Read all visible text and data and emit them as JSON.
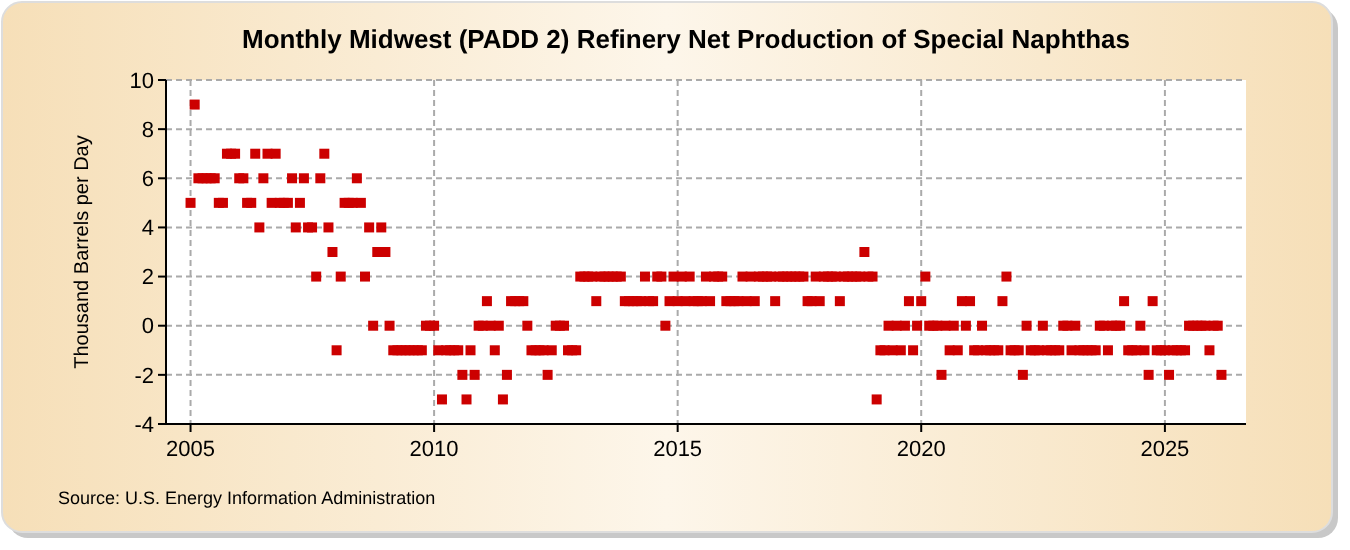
{
  "chart_data": {
    "type": "scatter",
    "title": "Monthly Midwest (PADD 2) Refinery Net Production of Special Naphthas",
    "ylabel": "Thousand Barrels per Day",
    "annotations": [
      "Source: U.S. Energy Information Administration"
    ],
    "marker": "square",
    "grid": true,
    "xlim": [
      "2004-07",
      "2026-09"
    ],
    "xticks": [
      {
        "value": "2005-01",
        "label": "2005"
      },
      {
        "value": "2010-01",
        "label": "2010"
      },
      {
        "value": "2015-01",
        "label": "2015"
      },
      {
        "value": "2020-01",
        "label": "2020"
      },
      {
        "value": "2025-01",
        "label": "2025"
      }
    ],
    "ylim": [
      -4,
      10
    ],
    "yticks": [
      -4,
      -2,
      0,
      2,
      4,
      6,
      8,
      10
    ],
    "x": [
      "2005-01",
      "2005-02",
      "2005-03",
      "2005-04",
      "2005-05",
      "2005-06",
      "2005-07",
      "2005-08",
      "2005-09",
      "2005-10",
      "2005-11",
      "2005-12",
      "2006-01",
      "2006-02",
      "2006-03",
      "2006-04",
      "2006-05",
      "2006-06",
      "2006-07",
      "2006-08",
      "2006-09",
      "2006-10",
      "2006-11",
      "2006-12",
      "2007-01",
      "2007-02",
      "2007-03",
      "2007-04",
      "2007-05",
      "2007-06",
      "2007-07",
      "2007-08",
      "2007-09",
      "2007-10",
      "2007-11",
      "2007-12",
      "2008-01",
      "2008-02",
      "2008-03",
      "2008-04",
      "2008-05",
      "2008-06",
      "2008-07",
      "2008-08",
      "2008-09",
      "2008-10",
      "2008-11",
      "2008-12",
      "2009-01",
      "2009-02",
      "2009-03",
      "2009-04",
      "2009-05",
      "2009-06",
      "2009-07",
      "2009-08",
      "2009-09",
      "2009-10",
      "2009-11",
      "2009-12",
      "2010-01",
      "2010-02",
      "2010-03",
      "2010-04",
      "2010-05",
      "2010-06",
      "2010-07",
      "2010-08",
      "2010-09",
      "2010-10",
      "2010-11",
      "2010-12",
      "2011-01",
      "2011-02",
      "2011-03",
      "2011-04",
      "2011-05",
      "2011-06",
      "2011-07",
      "2011-08",
      "2011-09",
      "2011-10",
      "2011-11",
      "2011-12",
      "2012-01",
      "2012-02",
      "2012-03",
      "2012-04",
      "2012-05",
      "2012-06",
      "2012-07",
      "2012-08",
      "2012-09",
      "2012-10",
      "2012-11",
      "2012-12",
      "2013-01",
      "2013-02",
      "2013-03",
      "2013-04",
      "2013-05",
      "2013-06",
      "2013-07",
      "2013-08",
      "2013-09",
      "2013-10",
      "2013-11",
      "2013-12",
      "2014-01",
      "2014-02",
      "2014-03",
      "2014-04",
      "2014-05",
      "2014-06",
      "2014-07",
      "2014-08",
      "2014-09",
      "2014-10",
      "2014-11",
      "2014-12",
      "2015-01",
      "2015-02",
      "2015-03",
      "2015-04",
      "2015-05",
      "2015-06",
      "2015-07",
      "2015-08",
      "2015-09",
      "2015-10",
      "2015-11",
      "2015-12",
      "2016-01",
      "2016-02",
      "2016-03",
      "2016-04",
      "2016-05",
      "2016-06",
      "2016-07",
      "2016-08",
      "2016-09",
      "2016-10",
      "2016-11",
      "2016-12",
      "2017-01",
      "2017-02",
      "2017-03",
      "2017-04",
      "2017-05",
      "2017-06",
      "2017-07",
      "2017-08",
      "2017-09",
      "2017-10",
      "2017-11",
      "2017-12",
      "2018-01",
      "2018-02",
      "2018-03",
      "2018-04",
      "2018-05",
      "2018-06",
      "2018-07",
      "2018-08",
      "2018-09",
      "2018-10",
      "2018-11",
      "2018-12",
      "2019-01",
      "2019-02",
      "2019-03",
      "2019-04",
      "2019-05",
      "2019-06",
      "2019-07",
      "2019-08",
      "2019-09",
      "2019-10",
      "2019-11",
      "2019-12",
      "2020-01",
      "2020-02",
      "2020-03",
      "2020-04",
      "2020-05",
      "2020-06",
      "2020-07",
      "2020-08",
      "2020-09",
      "2020-10",
      "2020-11",
      "2020-12",
      "2021-01",
      "2021-02",
      "2021-03",
      "2021-04",
      "2021-05",
      "2021-06",
      "2021-07",
      "2021-08",
      "2021-09",
      "2021-10",
      "2021-11",
      "2021-12",
      "2022-01",
      "2022-02",
      "2022-03",
      "2022-04",
      "2022-05",
      "2022-06",
      "2022-07",
      "2022-08",
      "2022-09",
      "2022-10",
      "2022-11",
      "2022-12",
      "2023-01",
      "2023-02",
      "2023-03",
      "2023-04",
      "2023-05",
      "2023-06",
      "2023-07",
      "2023-08",
      "2023-09",
      "2023-10",
      "2023-11",
      "2023-12",
      "2024-01",
      "2024-02",
      "2024-03",
      "2024-04",
      "2024-05",
      "2024-06",
      "2024-07",
      "2024-08",
      "2024-09",
      "2024-10",
      "2024-11",
      "2024-12",
      "2025-01",
      "2025-02",
      "2025-03",
      "2025-04",
      "2025-05",
      "2025-06",
      "2025-07",
      "2025-08",
      "2025-09",
      "2025-10",
      "2025-11",
      "2025-12",
      "2026-01",
      "2026-02",
      "2026-03"
    ],
    "series": [
      {
        "color": "#cc0000",
        "values": [
          5,
          9,
          6,
          6,
          6,
          6,
          6,
          5,
          5,
          7,
          7,
          7,
          6,
          6,
          5,
          5,
          7,
          4,
          6,
          7,
          5,
          7,
          5,
          5,
          5,
          6,
          4,
          5,
          6,
          4,
          4,
          2,
          6,
          7,
          4,
          3,
          -1,
          2,
          5,
          5,
          5,
          6,
          5,
          2,
          4,
          0,
          3,
          4,
          3,
          0,
          -1,
          -1,
          -1,
          -1,
          -1,
          -1,
          -1,
          -1,
          0,
          0,
          0,
          -1,
          -3,
          -1,
          -1,
          -1,
          -1,
          -2,
          -3,
          -1,
          -2,
          0,
          0,
          1,
          0,
          -1,
          0,
          -3,
          -2,
          1,
          1,
          1,
          1,
          0,
          -1,
          -1,
          -1,
          -1,
          -2,
          -1,
          0,
          0,
          0,
          -1,
          -1,
          -1,
          2,
          2,
          2,
          2,
          1,
          2,
          2,
          2,
          2,
          2,
          2,
          1,
          1,
          1,
          1,
          1,
          2,
          1,
          1,
          2,
          2,
          0,
          1,
          2,
          1,
          2,
          1,
          2,
          1,
          1,
          1,
          2,
          1,
          2,
          2,
          2,
          1,
          1,
          1,
          1,
          2,
          1,
          2,
          1,
          2,
          2,
          2,
          2,
          1,
          2,
          2,
          2,
          2,
          2,
          2,
          2,
          1,
          1,
          2,
          1,
          2,
          2,
          2,
          2,
          1,
          2,
          2,
          2,
          2,
          2,
          3,
          2,
          2,
          -3,
          -1,
          -1,
          0,
          -1,
          0,
          -1,
          0,
          1,
          -1,
          0,
          1,
          2,
          0,
          0,
          0,
          -2,
          0,
          -1,
          0,
          -1,
          1,
          0,
          1,
          -1,
          -1,
          0,
          -1,
          -1,
          -1,
          -1,
          1,
          2,
          -1,
          -1,
          -1,
          -2,
          0,
          -1,
          -1,
          -1,
          0,
          -1,
          -1,
          -1,
          -1,
          0,
          0,
          -1,
          0,
          -1,
          -1,
          -1,
          -1,
          -1,
          0,
          0,
          -1,
          0,
          0,
          0,
          1,
          -1,
          -1,
          -1,
          0,
          -1,
          -2,
          1,
          -1,
          -1,
          -1,
          -2,
          -1,
          -1,
          -1,
          -1,
          0,
          0,
          0,
          0,
          0,
          -1,
          0,
          0,
          -2
        ]
      }
    ]
  }
}
